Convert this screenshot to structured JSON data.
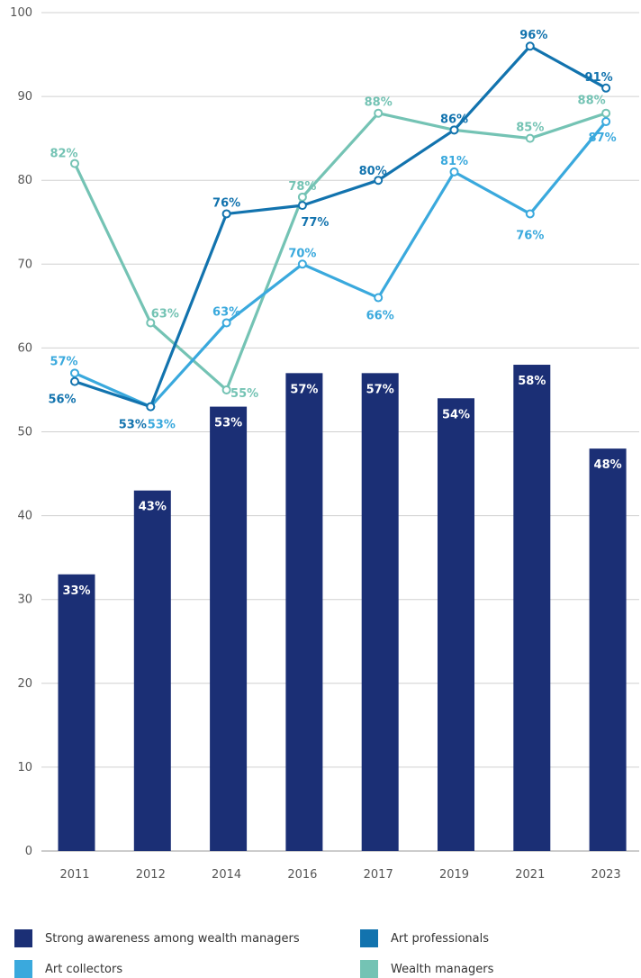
{
  "chart_data": {
    "type": "bar+line",
    "categories": [
      "2011",
      "2012",
      "2014",
      "2016",
      "2017",
      "2019",
      "2021",
      "2023"
    ],
    "ylim": [
      0,
      100
    ],
    "yticks": [
      0,
      10,
      20,
      30,
      40,
      50,
      60,
      70,
      80,
      90,
      100
    ],
    "grid": true,
    "legend_position": "bottom",
    "bars": {
      "name": "Strong awareness among wealth managers",
      "color": "#1b2f75",
      "values": [
        33,
        43,
        53,
        57,
        57,
        54,
        58,
        48
      ],
      "labels": [
        "33%",
        "43%",
        "53%",
        "57%",
        "57%",
        "54%",
        "58%",
        "48%"
      ]
    },
    "series": [
      {
        "name": "Art professionals",
        "color": "#1273ae",
        "values": [
          56,
          53,
          76,
          77,
          80,
          86,
          96,
          91
        ],
        "labels": [
          "56%",
          "53%",
          "76%",
          "77%",
          "80%",
          "86%",
          "96%",
          "91%"
        ]
      },
      {
        "name": "Art collectors",
        "color": "#3aa9dd",
        "values": [
          57,
          53,
          63,
          70,
          66,
          81,
          76,
          87
        ],
        "labels": [
          "57%",
          "53%",
          "63%",
          "70%",
          "66%",
          "81%",
          "76%",
          "87%"
        ]
      },
      {
        "name": "Wealth managers",
        "color": "#74c3b4",
        "values": [
          82,
          63,
          55,
          78,
          88,
          86,
          85,
          88
        ],
        "labels": [
          "82%",
          "63%",
          "55%",
          "78%",
          "88%",
          "",
          "85%",
          "88%"
        ]
      }
    ]
  }
}
